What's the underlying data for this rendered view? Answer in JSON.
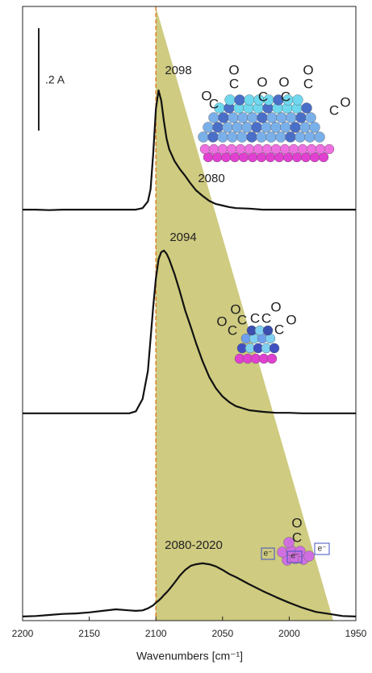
{
  "chart_data": {
    "type": "line",
    "xlabel": "Wavenumbers [cm⁻¹]",
    "xlim": [
      2200,
      1950
    ],
    "xticks": [
      2200,
      2150,
      2100,
      2050,
      2000,
      1950
    ],
    "ylim": [
      0,
      1.2
    ],
    "reference_line": 2100,
    "scale_bar": {
      "label": ".2 A",
      "value": 0.2
    },
    "annotations": [
      "2098",
      "2080",
      "2094",
      "2080-2020"
    ],
    "icons": [
      [
        "O",
        "C",
        "O",
        "C",
        "O",
        "C",
        "O",
        "C",
        "O",
        "C",
        "C",
        "O"
      ],
      [
        "O",
        "C",
        "C",
        "O",
        "C",
        "C",
        "O",
        "C",
        "O"
      ],
      [
        "O",
        "C",
        "e⁻",
        "e⁻",
        "e⁻"
      ]
    ],
    "x": [
      2200,
      2190,
      2180,
      2170,
      2160,
      2150,
      2140,
      2130,
      2120,
      2115,
      2110,
      2106,
      2104,
      2102,
      2100,
      2098,
      2096,
      2094,
      2092,
      2090,
      2086,
      2082,
      2078,
      2074,
      2070,
      2065,
      2060,
      2055,
      2050,
      2045,
      2040,
      2030,
      2020,
      2010,
      2000,
      1990,
      1980,
      1970,
      1960,
      1950
    ],
    "series": [
      {
        "color": "#111111",
        "values": [
          0.803,
          0.803,
          0.802,
          0.803,
          0.803,
          0.803,
          0.803,
          0.803,
          0.803,
          0.803,
          0.806,
          0.819,
          0.843,
          0.913,
          1.0,
          1.036,
          1.016,
          0.976,
          0.942,
          0.921,
          0.898,
          0.882,
          0.869,
          0.854,
          0.841,
          0.83,
          0.82,
          0.814,
          0.811,
          0.808,
          0.806,
          0.805,
          0.803,
          0.803,
          0.803,
          0.803,
          0.803,
          0.803,
          0.803,
          0.803
        ]
      },
      {
        "color": "#111111",
        "values": [
          0.405,
          0.405,
          0.405,
          0.405,
          0.405,
          0.405,
          0.405,
          0.405,
          0.405,
          0.409,
          0.433,
          0.488,
          0.551,
          0.614,
          0.669,
          0.706,
          0.72,
          0.723,
          0.717,
          0.706,
          0.677,
          0.643,
          0.606,
          0.575,
          0.543,
          0.507,
          0.476,
          0.454,
          0.438,
          0.427,
          0.419,
          0.411,
          0.408,
          0.406,
          0.406,
          0.405,
          0.405,
          0.405,
          0.405,
          0.405
        ]
      },
      {
        "color": "#111111",
        "values": [
          0.008,
          0.009,
          0.011,
          0.013,
          0.014,
          0.016,
          0.019,
          0.022,
          0.02,
          0.019,
          0.02,
          0.024,
          0.027,
          0.03,
          0.035,
          0.039,
          0.044,
          0.05,
          0.055,
          0.061,
          0.074,
          0.088,
          0.099,
          0.107,
          0.11,
          0.112,
          0.11,
          0.106,
          0.099,
          0.091,
          0.085,
          0.071,
          0.058,
          0.046,
          0.035,
          0.025,
          0.017,
          0.013,
          0.009,
          0.008
        ]
      }
    ]
  }
}
